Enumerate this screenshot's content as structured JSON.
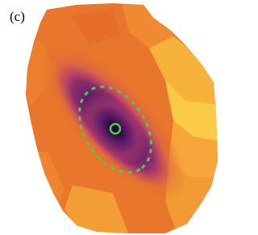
{
  "panel_label": "(c)"
}
